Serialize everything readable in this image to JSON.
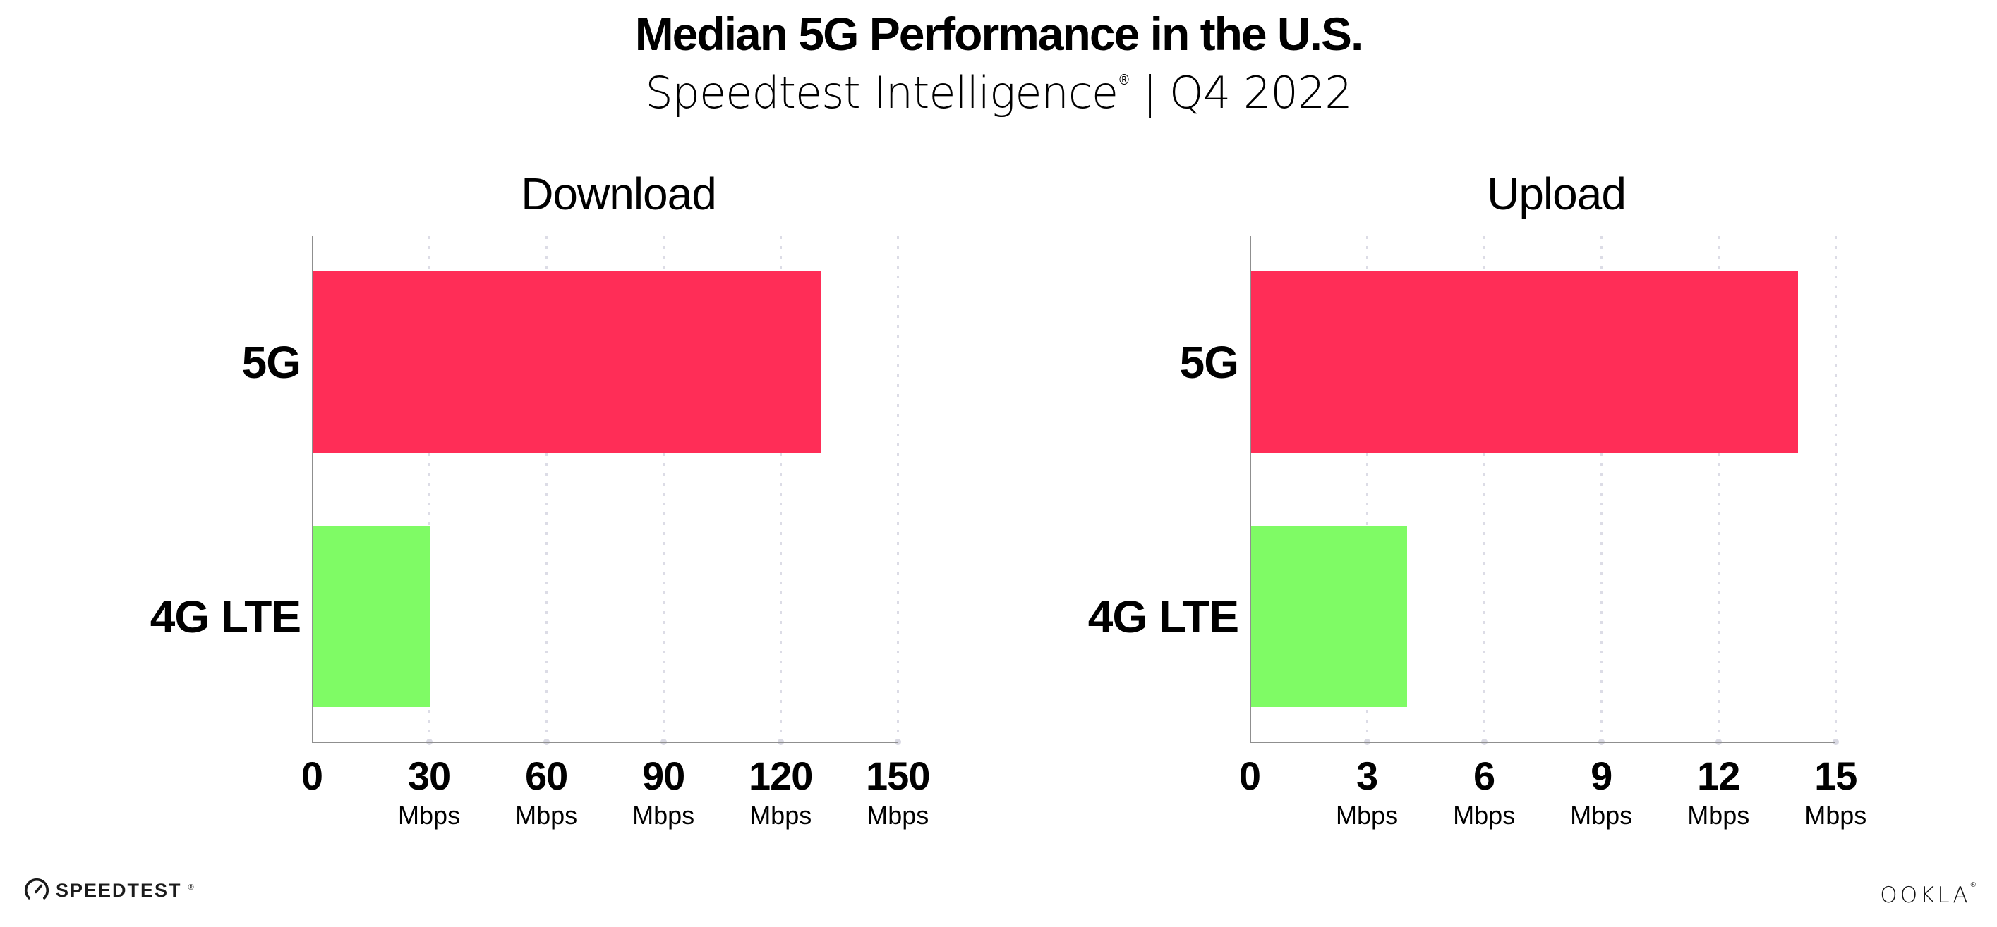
{
  "header": {
    "title": "Median 5G Performance in the U.S.",
    "subtitle": {
      "brand": "Speedtest Intelligence",
      "registered_mark": "®",
      "separator": "|",
      "period": "Q4 2022"
    }
  },
  "chart_data": [
    {
      "type": "bar",
      "orientation": "horizontal",
      "title": "Download",
      "categories": [
        "5G",
        "4G LTE"
      ],
      "values": [
        130,
        30
      ],
      "unit": "Mbps",
      "xticks": [
        0,
        30,
        60,
        90,
        120,
        150
      ],
      "xtick_unit_label": "Mbps",
      "xlim": [
        0,
        157
      ],
      "grid": "vertical-dotted",
      "legend": "none",
      "bar_colors": [
        "#ff2d57",
        "#7ffb65"
      ]
    },
    {
      "type": "bar",
      "orientation": "horizontal",
      "title": "Upload",
      "categories": [
        "5G",
        "4G LTE"
      ],
      "values": [
        14,
        4
      ],
      "unit": "Mbps",
      "xticks": [
        0,
        3,
        6,
        9,
        12,
        15
      ],
      "xtick_unit_label": "Mbps",
      "xlim": [
        0,
        15.7
      ],
      "grid": "vertical-dotted",
      "legend": "none",
      "bar_colors": [
        "#ff2d57",
        "#7ffb65"
      ]
    }
  ],
  "footer": {
    "speedtest_logo_text": "SPEEDTEST",
    "speedtest_trademark": "®",
    "ookla_logo_text": "OOKLA",
    "ookla_trademark": "®"
  },
  "colors": {
    "bar_5g": "#ff2d57",
    "bar_4g_lte": "#7ffb65",
    "axis_line": "#8f8f8f",
    "gridline_dot": "#dcdce6",
    "text": "#000000"
  }
}
